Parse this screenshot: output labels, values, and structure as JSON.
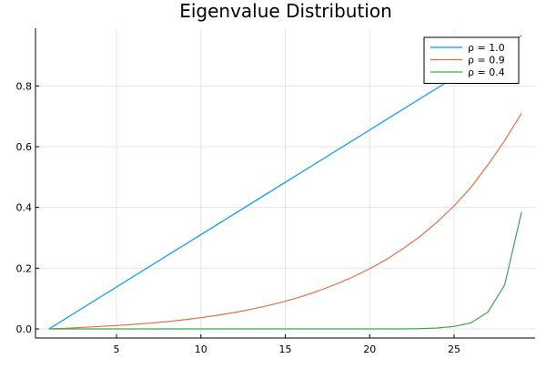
{
  "chart_data": {
    "type": "line",
    "title": "Eigenvalue Distribution",
    "xlabel": "",
    "ylabel": "",
    "xlim": [
      0.2,
      29.8
    ],
    "ylim": [
      -0.03,
      0.99
    ],
    "xticks": [
      5,
      10,
      15,
      20,
      25
    ],
    "yticks": [
      0.0,
      0.2,
      0.4,
      0.6,
      0.8
    ],
    "ytick_labels": [
      "0.0",
      "0.2",
      "0.4",
      "0.6",
      "0.8"
    ],
    "grid": true,
    "legend_position": "top-right",
    "x": [
      1,
      2,
      3,
      4,
      5,
      6,
      7,
      8,
      9,
      10,
      11,
      12,
      13,
      14,
      15,
      16,
      17,
      18,
      19,
      20,
      21,
      22,
      23,
      24,
      25,
      26,
      27,
      28,
      29
    ],
    "series": [
      {
        "name": "ρ = 1.0",
        "color": "#009AFA",
        "values": [
          0.0,
          0.0345,
          0.069,
          0.1034,
          0.1379,
          0.1724,
          0.2069,
          0.2414,
          0.2759,
          0.3103,
          0.3448,
          0.3793,
          0.4138,
          0.4483,
          0.4828,
          0.5172,
          0.5517,
          0.5862,
          0.6207,
          0.6552,
          0.6897,
          0.7241,
          0.7586,
          0.7931,
          0.8276,
          0.8621,
          0.8966,
          0.931,
          0.966
        ]
      },
      {
        "name": "ρ = 0.9",
        "color": "#E36F47",
        "values": [
          0.0,
          0.002,
          0.005,
          0.008,
          0.011,
          0.015,
          0.019,
          0.024,
          0.03,
          0.037,
          0.045,
          0.054,
          0.065,
          0.077,
          0.091,
          0.107,
          0.126,
          0.147,
          0.171,
          0.198,
          0.229,
          0.265,
          0.305,
          0.352,
          0.405,
          0.466,
          0.54,
          0.62,
          0.71
        ]
      },
      {
        "name": "ρ = 0.4",
        "color": "#3EA44E",
        "values": [
          0.0,
          0.0,
          0.0,
          0.0,
          0.0,
          0.0,
          0.0,
          0.0,
          0.0,
          0.0,
          0.0,
          0.0,
          0.0,
          0.0,
          0.0,
          0.0,
          0.0,
          0.0,
          0.0,
          0.0,
          0.0,
          0.0,
          0.001,
          0.003,
          0.008,
          0.02,
          0.055,
          0.145,
          0.385
        ]
      }
    ]
  }
}
